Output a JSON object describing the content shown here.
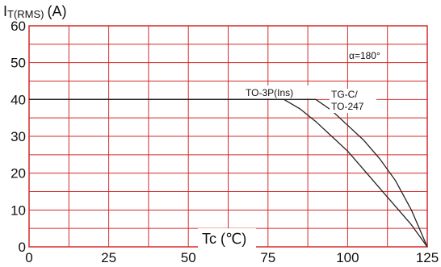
{
  "chart_data": {
    "type": "line",
    "y_label_main": "I",
    "y_label_sub": "T(RMS)",
    "y_label_unit": "(A)",
    "xlabel": "Tc (℃)",
    "x_ticks": [
      0,
      25,
      50,
      75,
      100,
      125
    ],
    "y_ticks": [
      0,
      10,
      20,
      30,
      40,
      50,
      60
    ],
    "xlim": [
      0,
      125
    ],
    "ylim": [
      0,
      60
    ],
    "grid": true,
    "grid_color": "#d42a2a",
    "line_color": "#222222",
    "annotations": {
      "angle": "α=180°",
      "to3p": "TO-3P(Ins)",
      "tgc_line1": "TG-C/",
      "tgc_line2": "TO-247"
    },
    "series": [
      {
        "name": "TO-3P(Ins)",
        "points": [
          [
            0,
            40
          ],
          [
            80,
            40
          ],
          [
            85,
            37.5
          ],
          [
            90,
            34
          ],
          [
            95,
            30
          ],
          [
            100,
            26
          ],
          [
            105,
            21
          ],
          [
            110,
            16
          ],
          [
            115,
            11
          ],
          [
            120,
            6
          ],
          [
            125,
            0
          ]
        ]
      },
      {
        "name": "TG-C/TO-247",
        "points": [
          [
            0,
            40
          ],
          [
            90,
            40
          ],
          [
            95,
            37
          ],
          [
            100,
            33
          ],
          [
            105,
            29
          ],
          [
            110,
            24
          ],
          [
            115,
            18
          ],
          [
            120,
            10
          ],
          [
            125,
            0
          ]
        ]
      }
    ]
  }
}
